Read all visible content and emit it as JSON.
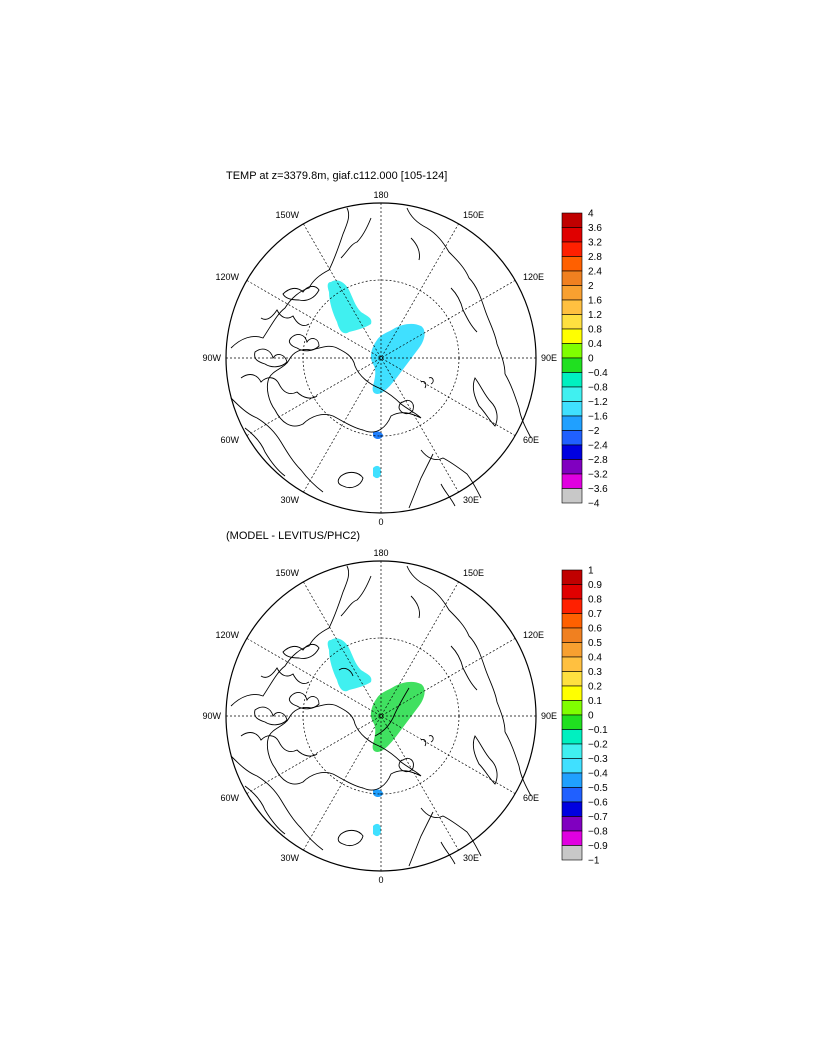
{
  "panels": [
    {
      "title": "TEMP at z=3379.8m, giaf.c112.000 [105-124]",
      "lon_labels": {
        "180": "180",
        "150E": "150E",
        "120E": "120E",
        "90E": "90E",
        "60E": "60E",
        "30E": "30E",
        "0": "0",
        "30W": "30W",
        "60W": "60W",
        "90W": "90W",
        "120W": "120W",
        "150W": "150W"
      },
      "colorbar": {
        "labels": [
          "4",
          "3.6",
          "3.2",
          "2.8",
          "2.4",
          "2",
          "1.6",
          "1.2",
          "0.8",
          "0.4",
          "0",
          "−0.4",
          "−0.8",
          "−1.2",
          "−1.6",
          "−2",
          "−2.4",
          "−2.8",
          "−3.2",
          "−3.6",
          "−4"
        ],
        "colors": [
          "#c00000",
          "#e00000",
          "#ff2000",
          "#ff6000",
          "#f08020",
          "#f8a030",
          "#ffc040",
          "#ffe040",
          "#ffff00",
          "#80ff00",
          "#20e020",
          "#00f0c0",
          "#40f0f0",
          "#40e0ff",
          "#20a0ff",
          "#2060ff",
          "#0000e0",
          "#8000c0",
          "#e000e0",
          "#c8c8c8",
          "#707070"
        ]
      },
      "fields": [
        {
          "name": "anomaly-patch-canada-basin",
          "value_range": "−0.4 to 0",
          "color": "#40f0f0"
        },
        {
          "name": "anomaly-patch-eurasian-basin",
          "value_range": "−0.8 to −0.4",
          "color": "#40e0ff"
        },
        {
          "name": "anomaly-patch-fram-strait",
          "value_range": "−2 to −1.6",
          "color": "#2080ff"
        },
        {
          "name": "anomaly-patch-nordic-seas",
          "value_range": "−0.8 to −0.4",
          "color": "#40e0ff"
        }
      ]
    },
    {
      "title": "(MODEL - LEVITUS/PHC2)",
      "lon_labels": {
        "180": "180",
        "150E": "150E",
        "120E": "120E",
        "90E": "90E",
        "60E": "60E",
        "30E": "30E",
        "0": "0",
        "30W": "30W",
        "60W": "60W",
        "90W": "90W",
        "120W": "120W",
        "150W": "150W"
      },
      "colorbar": {
        "labels": [
          "1",
          "0.9",
          "0.8",
          "0.7",
          "0.6",
          "0.5",
          "0.4",
          "0.3",
          "0.2",
          "0.1",
          "0",
          "−0.1",
          "−0.2",
          "−0.3",
          "−0.4",
          "−0.5",
          "−0.6",
          "−0.7",
          "−0.8",
          "−0.9",
          "−1"
        ],
        "colors": [
          "#c00000",
          "#e00000",
          "#ff2000",
          "#ff6000",
          "#f08020",
          "#f8a030",
          "#ffc040",
          "#ffe040",
          "#ffff00",
          "#80ff00",
          "#20e020",
          "#00f0c0",
          "#40f0f0",
          "#40e0ff",
          "#20a0ff",
          "#2060ff",
          "#0000e0",
          "#8000c0",
          "#e000e0",
          "#c8c8c8",
          "#707070"
        ]
      },
      "fields": [
        {
          "name": "diff-patch-canada-basin",
          "value_range": "−0.1 to 0",
          "color": "#40f0f0"
        },
        {
          "name": "diff-patch-eurasian-basin",
          "value_range": "0 to 0.1",
          "color": "#40e060"
        },
        {
          "name": "diff-patch-fram-strait",
          "value_range": "−0.4 to −0.3",
          "color": "#20a0ff"
        },
        {
          "name": "diff-patch-nordic-seas",
          "value_range": "−0.2 to −0.1",
          "color": "#40e0ff"
        }
      ]
    }
  ]
}
